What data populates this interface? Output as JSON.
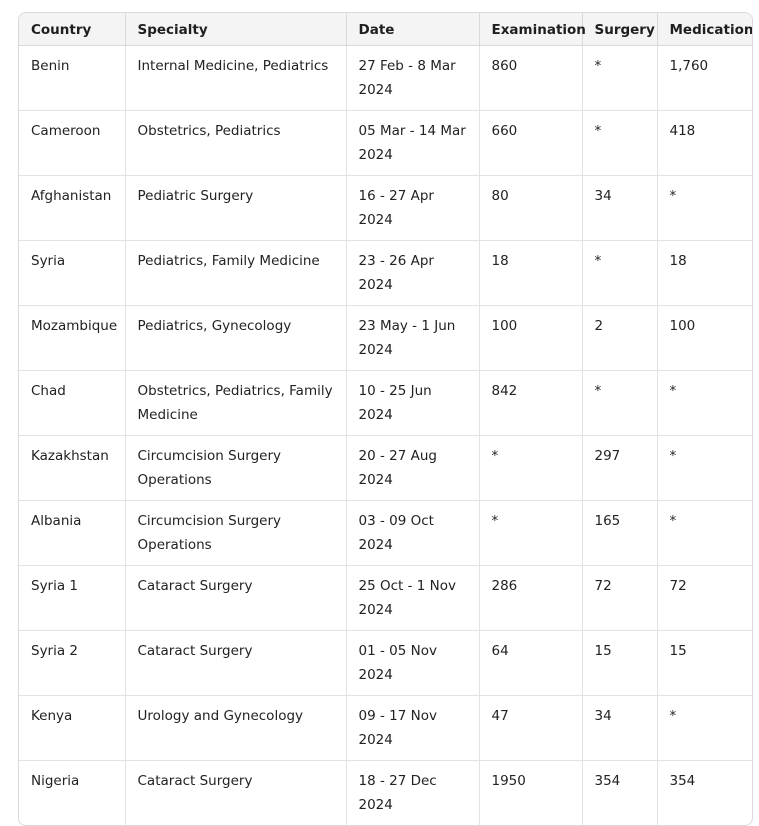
{
  "table": {
    "headers": [
      "Country",
      "Specialty",
      "Date",
      "Examination",
      "Surgery",
      "Medication"
    ],
    "rows": [
      [
        "Benin",
        "Internal Medicine, Pediatrics",
        "27 Feb - 8 Mar 2024",
        "860",
        "*",
        "1,760"
      ],
      [
        "Cameroon",
        "Obstetrics, Pediatrics",
        "05 Mar - 14 Mar 2024",
        "660",
        "*",
        "418"
      ],
      [
        "Afghanistan",
        "Pediatric Surgery",
        "16 - 27 Apr 2024",
        "80",
        "34",
        "*"
      ],
      [
        "Syria",
        "Pediatrics, Family Medicine",
        "23 - 26 Apr 2024",
        "18",
        "*",
        "18"
      ],
      [
        "Mozambique",
        "Pediatrics, Gynecology",
        "23 May - 1 Jun 2024",
        "100",
        "2",
        "100"
      ],
      [
        "Chad",
        "Obstetrics, Pediatrics, Family Medicine",
        "10 - 25 Jun 2024",
        "842",
        "*",
        "*"
      ],
      [
        "Kazakhstan",
        "Circumcision Surgery Operations",
        "20 - 27 Aug 2024",
        "*",
        "297",
        "*"
      ],
      [
        "Albania",
        "Circumcision Surgery Operations",
        "03 - 09 Oct 2024",
        "*",
        "165",
        "*"
      ],
      [
        "Syria 1",
        "Cataract Surgery",
        "25 Oct - 1 Nov 2024",
        "286",
        "72",
        "72"
      ],
      [
        "Syria 2",
        "Cataract Surgery",
        "01 - 05 Nov 2024",
        "64",
        "15",
        "15"
      ],
      [
        "Kenya",
        "Urology and Gynecology",
        "09 - 17 Nov 2024",
        "47",
        "34",
        "*"
      ],
      [
        "Nigeria",
        "Cataract Surgery",
        "18 - 27 Dec 2024",
        "1950",
        "354",
        "354"
      ]
    ]
  }
}
